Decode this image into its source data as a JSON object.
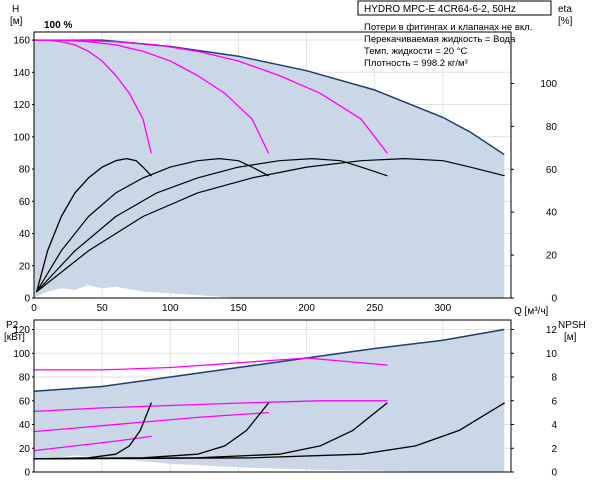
{
  "chart_data": [
    {
      "type": "line",
      "panel": "head-efficiency",
      "title": "HYDRO MPC-E 4CR64-6-2, 50Hz",
      "xlabel": "Q [м³/ч]",
      "ylabel_left": [
        "H",
        "[м]"
      ],
      "ylabel_right": [
        "eta",
        "[%]"
      ],
      "xlim": [
        0,
        350
      ],
      "ylim_left": [
        0,
        165
      ],
      "ylim_right": [
        0,
        124
      ],
      "x_ticks": [
        0,
        50,
        100,
        150,
        200,
        250,
        300
      ],
      "y_ticks_left": [
        0,
        20,
        40,
        60,
        80,
        100,
        120,
        140,
        160
      ],
      "y_ticks_right": [
        0,
        20,
        40,
        60,
        80,
        100
      ],
      "grid": true,
      "notes": [
        "Потери в фитингах и клапанах не вкл.",
        "Перекачиваемая жидкость = Вода",
        "Темп. жидкости = 20 °C",
        "Плотность = 998.2 кг/м³"
      ],
      "speed_label": "100 %",
      "colors": {
        "band": "#c9d7e6",
        "envelope": "#1f3f6b",
        "pump_curve": "#ff00ff",
        "efficiency": "#000000"
      },
      "envelope": {
        "upper": [
          [
            0,
            160
          ],
          [
            50,
            160
          ],
          [
            100,
            156
          ],
          [
            150,
            150
          ],
          [
            200,
            141
          ],
          [
            250,
            129
          ],
          [
            300,
            112
          ],
          [
            320,
            103
          ],
          [
            345,
            89
          ]
        ],
        "lower": [
          [
            0,
            0
          ],
          [
            10,
            4
          ],
          [
            20,
            6
          ],
          [
            30,
            5
          ],
          [
            40,
            8
          ],
          [
            50,
            6
          ],
          [
            60,
            7
          ],
          [
            80,
            4
          ],
          [
            100,
            3
          ],
          [
            150,
            0
          ],
          [
            345,
            0
          ]
        ]
      },
      "series": [
        {
          "name": "",
          "role": "head",
          "points": [
            [
              0,
              160
            ],
            [
              10,
              160
            ],
            [
              20,
              159
            ],
            [
              30,
              157
            ],
            [
              40,
              153
            ],
            [
              50,
              147
            ],
            [
              60,
              138
            ],
            [
              70,
              127
            ],
            [
              80,
              111
            ],
            [
              86,
              90
            ]
          ]
        },
        {
          "name": "",
          "role": "head",
          "points": [
            [
              0,
              160
            ],
            [
              20,
              160
            ],
            [
              40,
              159
            ],
            [
              60,
              157
            ],
            [
              80,
              153
            ],
            [
              100,
              147
            ],
            [
              120,
              138
            ],
            [
              140,
              127
            ],
            [
              160,
              111
            ],
            [
              172,
              90
            ]
          ]
        },
        {
          "name": "",
          "role": "head",
          "points": [
            [
              0,
              160
            ],
            [
              30,
              160
            ],
            [
              60,
              159
            ],
            [
              90,
              157
            ],
            [
              120,
              153
            ],
            [
              150,
              147
            ],
            [
              180,
              138
            ],
            [
              210,
              127
            ],
            [
              240,
              111
            ],
            [
              259,
              90
            ]
          ]
        },
        {
          "name": "",
          "role": "efficiency",
          "points": [
            [
              2,
              3
            ],
            [
              10,
              22
            ],
            [
              20,
              38
            ],
            [
              30,
              49
            ],
            [
              40,
              56
            ],
            [
              50,
              61
            ],
            [
              60,
              64
            ],
            [
              68,
              65
            ],
            [
              75,
              64
            ],
            [
              80,
              61
            ],
            [
              86,
              57
            ]
          ]
        },
        {
          "name": "",
          "role": "efficiency",
          "points": [
            [
              2,
              3
            ],
            [
              20,
              22
            ],
            [
              40,
              38
            ],
            [
              60,
              49
            ],
            [
              80,
              56
            ],
            [
              100,
              61
            ],
            [
              120,
              64
            ],
            [
              136,
              65
            ],
            [
              150,
              64
            ],
            [
              160,
              61
            ],
            [
              172,
              57
            ]
          ]
        },
        {
          "name": "",
          "role": "efficiency",
          "points": [
            [
              2,
              3
            ],
            [
              30,
              22
            ],
            [
              60,
              38
            ],
            [
              90,
              49
            ],
            [
              120,
              56
            ],
            [
              150,
              61
            ],
            [
              180,
              64
            ],
            [
              204,
              65
            ],
            [
              225,
              64
            ],
            [
              240,
              61
            ],
            [
              259,
              57
            ]
          ]
        },
        {
          "name": "",
          "role": "efficiency",
          "points": [
            [
              2,
              3
            ],
            [
              40,
              22
            ],
            [
              80,
              38
            ],
            [
              120,
              49
            ],
            [
              160,
              56
            ],
            [
              200,
              61
            ],
            [
              240,
              64
            ],
            [
              272,
              65
            ],
            [
              300,
              64
            ],
            [
              320,
              61
            ],
            [
              345,
              57
            ]
          ]
        }
      ]
    },
    {
      "type": "line",
      "panel": "power-npsh",
      "xlim": [
        0,
        350
      ],
      "ylim_left": [
        0,
        128
      ],
      "ylim_right": [
        0,
        12.8
      ],
      "ylabel_left": [
        "P2",
        "[кВт]"
      ],
      "ylabel_right": [
        "NPSH",
        "[м]"
      ],
      "y_ticks_left": [
        0,
        20,
        40,
        60,
        80,
        100,
        120
      ],
      "y_ticks_right": [
        0,
        2,
        4,
        6,
        8,
        10,
        12
      ],
      "grid": true,
      "envelope": {
        "upper": [
          [
            0,
            68
          ],
          [
            50,
            72
          ],
          [
            100,
            80
          ],
          [
            150,
            88
          ],
          [
            200,
            96
          ],
          [
            250,
            104
          ],
          [
            300,
            111
          ],
          [
            345,
            120
          ]
        ],
        "lower": [
          [
            0,
            10
          ],
          [
            30,
            14
          ],
          [
            50,
            12
          ],
          [
            80,
            9
          ],
          [
            100,
            7
          ],
          [
            150,
            4
          ],
          [
            200,
            2
          ],
          [
            250,
            1
          ],
          [
            300,
            0
          ],
          [
            345,
            0
          ]
        ]
      },
      "series": [
        {
          "name": "",
          "role": "power",
          "points": [
            [
              0,
              18
            ],
            [
              30,
              22
            ],
            [
              60,
              26
            ],
            [
              86,
              30
            ]
          ]
        },
        {
          "name": "",
          "role": "power",
          "points": [
            [
              0,
              34
            ],
            [
              40,
              38
            ],
            [
              80,
              42
            ],
            [
              120,
              46
            ],
            [
              172,
              50
            ]
          ]
        },
        {
          "name": "",
          "role": "power",
          "points": [
            [
              0,
              51
            ],
            [
              50,
              54
            ],
            [
              100,
              56
            ],
            [
              150,
              58
            ],
            [
              210,
              60
            ],
            [
              259,
              60
            ]
          ]
        },
        {
          "name": "",
          "role": "power",
          "points": [
            [
              0,
              86
            ],
            [
              50,
              86
            ],
            [
              100,
              88
            ],
            [
              150,
              92
            ],
            [
              200,
              96
            ],
            [
              259,
              90
            ]
          ]
        },
        {
          "name": "",
          "role": "npsh",
          "points": [
            [
              0,
              1.1
            ],
            [
              40,
              1.2
            ],
            [
              60,
              1.5
            ],
            [
              70,
              2.2
            ],
            [
              78,
              3.5
            ],
            [
              86,
              5.8
            ]
          ]
        },
        {
          "name": "",
          "role": "npsh",
          "points": [
            [
              0,
              1.1
            ],
            [
              80,
              1.2
            ],
            [
              120,
              1.5
            ],
            [
              140,
              2.2
            ],
            [
              156,
              3.5
            ],
            [
              172,
              5.8
            ]
          ]
        },
        {
          "name": "",
          "role": "npsh",
          "points": [
            [
              0,
              1.1
            ],
            [
              120,
              1.2
            ],
            [
              180,
              1.5
            ],
            [
              210,
              2.2
            ],
            [
              234,
              3.5
            ],
            [
              259,
              5.8
            ]
          ]
        },
        {
          "name": "",
          "role": "npsh",
          "points": [
            [
              0,
              1.1
            ],
            [
              160,
              1.2
            ],
            [
              240,
              1.5
            ],
            [
              280,
              2.2
            ],
            [
              312,
              3.5
            ],
            [
              345,
              5.8
            ]
          ]
        }
      ]
    }
  ]
}
